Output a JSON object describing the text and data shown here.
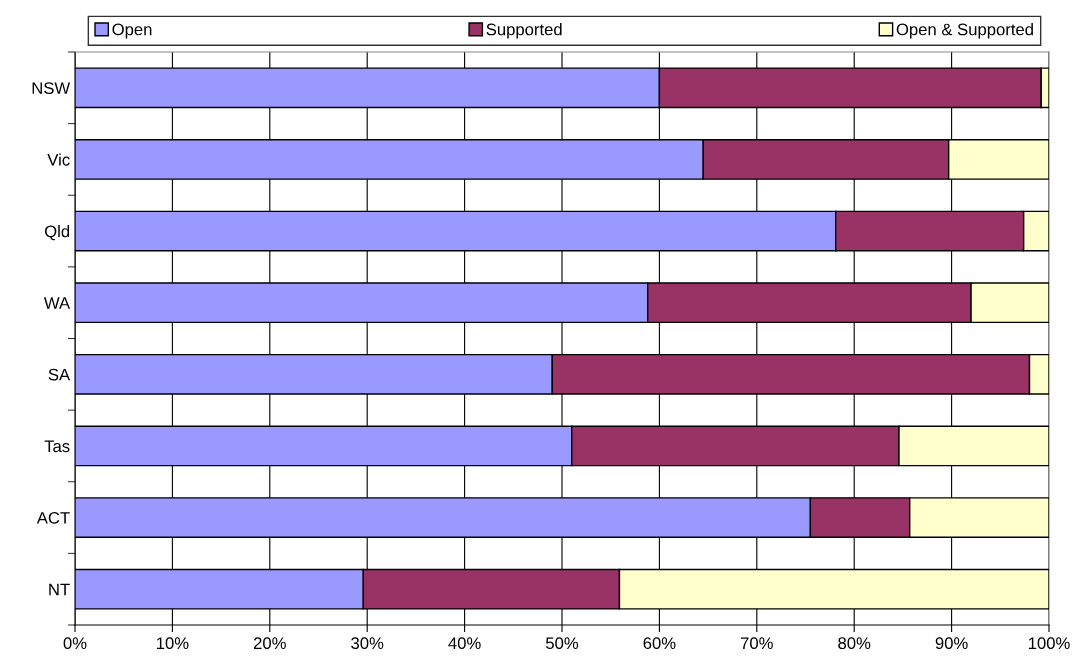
{
  "chart_data": {
    "type": "bar",
    "orientation": "horizontal",
    "stacked": true,
    "categories": [
      "NSW",
      "Vic",
      "Qld",
      "WA",
      "SA",
      "Tas",
      "ACT",
      "NT"
    ],
    "series": [
      {
        "name": "Open",
        "color": "#9999ff",
        "values": [
          60.0,
          64.5,
          78.1,
          58.8,
          49.0,
          51.0,
          75.5,
          29.6
        ]
      },
      {
        "name": "Supported",
        "color": "#993366",
        "values": [
          39.2,
          25.2,
          19.3,
          33.2,
          49.0,
          33.6,
          10.2,
          26.3
        ]
      },
      {
        "name": "Open & Supported",
        "color": "#ffffcc",
        "values": [
          0.8,
          10.3,
          2.6,
          8.0,
          2.0,
          15.4,
          14.3,
          44.1
        ]
      }
    ],
    "xlim": [
      0,
      100
    ],
    "xticks": [
      {
        "value": 0,
        "label": "0%"
      },
      {
        "value": 10,
        "label": "10%"
      },
      {
        "value": 20,
        "label": "20%"
      },
      {
        "value": 30,
        "label": "30%"
      },
      {
        "value": 40,
        "label": "40%"
      },
      {
        "value": 50,
        "label": "50%"
      },
      {
        "value": 60,
        "label": "60%"
      },
      {
        "value": 70,
        "label": "70%"
      },
      {
        "value": 80,
        "label": "80%"
      },
      {
        "value": 90,
        "label": "90%"
      },
      {
        "value": 100,
        "label": "100%"
      }
    ],
    "grid": "x",
    "legend": "top"
  }
}
